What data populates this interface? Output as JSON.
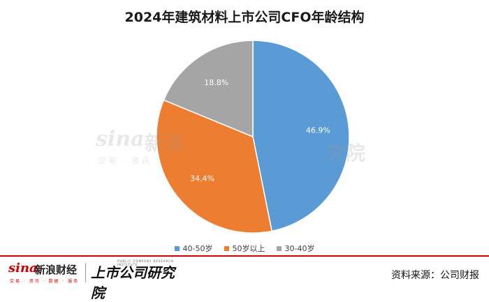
{
  "chart_data": {
    "type": "pie",
    "title": "2024年建筑材料上市公司CFO年龄结构",
    "categories": [
      "40-50岁",
      "50岁以上",
      "30-40岁"
    ],
    "values": [
      46.9,
      34.4,
      18.8
    ],
    "value_labels": [
      "46.9%",
      "34.4%",
      "18.8%"
    ],
    "colors": [
      "#5b9bd5",
      "#ed7d31",
      "#a5a5a5"
    ],
    "legend_position": "bottom",
    "start_angle": "top, clockwise"
  },
  "watermark": {
    "sina_word": "sina",
    "sina_name": "新浪",
    "sina_sub": "交易 · 资讯",
    "research_fragment": "究院"
  },
  "footer": {
    "sina_word": "sina",
    "sina_name": "新浪财经",
    "sina_sub": "交易 · 资讯 · 数据 · 服务",
    "research_name": "上市公司研究院",
    "research_sub": "PUBLIC COMPANY RESEARCH INSTITUTE",
    "source": "资料来源：公司财报"
  }
}
